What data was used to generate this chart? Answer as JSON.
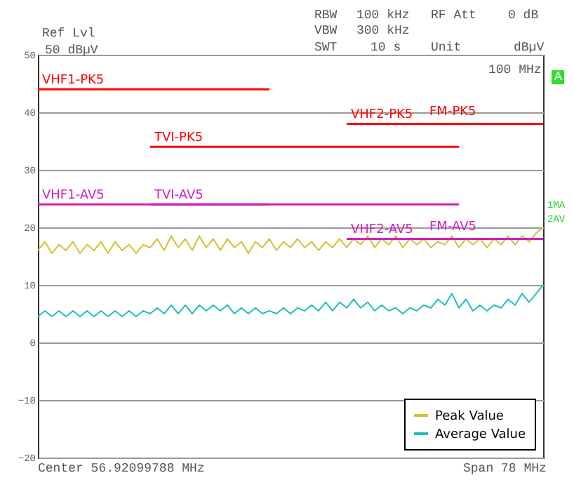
{
  "chart_data": {
    "type": "line",
    "categories": [
      null,
      null,
      null,
      null,
      null,
      null,
      null,
      null,
      null,
      null,
      null,
      null,
      null,
      null,
      null,
      null,
      null,
      null,
      null,
      null,
      null,
      null,
      null,
      null,
      null,
      null,
      null,
      null,
      null,
      null,
      null,
      null,
      null,
      null,
      null,
      null,
      null,
      null,
      null,
      null,
      null,
      null,
      null,
      null,
      null,
      null,
      null,
      null,
      null,
      null,
      null,
      null,
      null,
      null,
      null,
      null,
      null,
      null,
      null,
      null,
      null,
      null,
      null,
      null,
      null,
      null,
      null,
      null,
      null,
      null,
      null,
      null,
      null
    ],
    "series": [
      {
        "name": "Peak Value",
        "color": "#d4c030",
        "values": [
          16,
          17.5,
          15.5,
          17,
          16,
          17.5,
          15.5,
          17,
          16,
          17.5,
          15.5,
          17.5,
          16,
          17,
          15.5,
          17,
          16.5,
          18,
          16,
          18.5,
          16.5,
          18,
          16,
          18.5,
          16.5,
          18,
          16,
          18,
          16.5,
          17.5,
          15.5,
          17.5,
          16.5,
          18,
          16,
          17.5,
          16.5,
          18,
          16.5,
          17.5,
          16,
          17.5,
          16.5,
          18,
          16.5,
          18,
          17,
          18.5,
          16.5,
          18,
          17,
          18.5,
          16.5,
          18,
          17,
          18,
          16.5,
          17.5,
          17,
          18.5,
          16.5,
          18,
          17,
          18,
          16.5,
          18,
          17,
          18.5,
          17,
          18.5,
          17.5,
          19,
          20
        ]
      },
      {
        "name": "Average Value",
        "color": "#20c0c0",
        "values": [
          4.5,
          5.5,
          4.5,
          5.5,
          4.5,
          5.5,
          4.5,
          5.5,
          4.5,
          5.5,
          4.5,
          5.5,
          4.5,
          5.5,
          4.5,
          5.5,
          5,
          6,
          5,
          6.5,
          5,
          6.5,
          5,
          6.5,
          5.5,
          6.5,
          5.5,
          6.5,
          5,
          6,
          5,
          6,
          5,
          5.5,
          5,
          6,
          5,
          6,
          5.5,
          6.5,
          5.5,
          7,
          5.5,
          7,
          6,
          7.5,
          6,
          7,
          5.5,
          6.5,
          5.5,
          6,
          5,
          6,
          5.5,
          6.5,
          6,
          7.5,
          6.5,
          8.5,
          6,
          7.5,
          5.5,
          6.5,
          5.5,
          6.5,
          6,
          7.5,
          6.5,
          8.5,
          7,
          8.5,
          10
        ]
      },
      {
        "name": "VHF1-PK5",
        "type": "step",
        "color": "#ff0000",
        "values": [
          44,
          44,
          44,
          44,
          44,
          44,
          44,
          44,
          44,
          44,
          44,
          44,
          44,
          44,
          44,
          44,
          44,
          44,
          44,
          44,
          44,
          44,
          44,
          44,
          44,
          44,
          44,
          44,
          44,
          44,
          44,
          44,
          44,
          44,
          null,
          null,
          null,
          null,
          null,
          null,
          null,
          null,
          null,
          null,
          null,
          null,
          null,
          null,
          null,
          null,
          null,
          null,
          null,
          null,
          null,
          null,
          null,
          null,
          null,
          null,
          null,
          null,
          null,
          null,
          null,
          null,
          null,
          null,
          null,
          null,
          null,
          null,
          null
        ]
      },
      {
        "name": "TVI-PK5",
        "type": "step",
        "color": "#ff0000",
        "values": [
          null,
          null,
          null,
          null,
          null,
          null,
          null,
          null,
          null,
          null,
          null,
          null,
          null,
          null,
          null,
          null,
          34,
          34,
          34,
          34,
          34,
          34,
          34,
          34,
          34,
          34,
          34,
          34,
          34,
          34,
          34,
          34,
          34,
          34,
          34,
          34,
          34,
          34,
          34,
          34,
          34,
          34,
          34,
          34,
          34,
          34,
          34,
          34,
          34,
          34,
          34,
          34,
          34,
          34,
          34,
          34,
          34,
          34,
          34,
          34,
          34,
          null,
          null,
          null,
          null,
          null,
          null,
          null,
          null,
          null,
          null,
          null,
          null
        ]
      },
      {
        "name": "VHF2-PK5",
        "type": "step",
        "color": "#ff0000",
        "values": [
          null,
          null,
          null,
          null,
          null,
          null,
          null,
          null,
          null,
          null,
          null,
          null,
          null,
          null,
          null,
          null,
          null,
          null,
          null,
          null,
          null,
          null,
          null,
          null,
          null,
          null,
          null,
          null,
          null,
          null,
          null,
          null,
          null,
          null,
          null,
          null,
          null,
          null,
          null,
          null,
          null,
          null,
          null,
          null,
          38,
          38,
          38,
          38,
          38,
          38,
          38,
          38,
          38,
          38,
          38,
          38,
          38,
          38,
          38,
          38,
          38,
          38,
          38,
          38,
          38,
          38,
          38,
          38,
          38,
          38,
          38,
          38,
          38
        ]
      },
      {
        "name": "VHF1-AV5",
        "type": "step",
        "color": "#d020c0",
        "values": [
          24,
          24,
          24,
          24,
          24,
          24,
          24,
          24,
          24,
          24,
          24,
          24,
          24,
          24,
          24,
          24,
          24,
          24,
          24,
          24,
          24,
          24,
          24,
          24,
          24,
          24,
          24,
          24,
          24,
          24,
          24,
          24,
          24,
          24,
          null,
          null,
          null,
          null,
          null,
          null,
          null,
          null,
          null,
          null,
          null,
          null,
          null,
          null,
          null,
          null,
          null,
          null,
          null,
          null,
          null,
          null,
          null,
          null,
          null,
          null,
          null,
          null,
          null,
          null,
          null,
          null,
          null,
          null,
          null,
          null,
          null,
          null,
          null
        ]
      },
      {
        "name": "TVI-AV5",
        "type": "step",
        "color": "#d020c0",
        "values": [
          null,
          null,
          null,
          null,
          null,
          null,
          null,
          null,
          null,
          null,
          null,
          null,
          null,
          null,
          null,
          null,
          24,
          24,
          24,
          24,
          24,
          24,
          24,
          24,
          24,
          24,
          24,
          24,
          24,
          24,
          24,
          24,
          24,
          24,
          24,
          24,
          24,
          24,
          24,
          24,
          24,
          24,
          24,
          24,
          24,
          24,
          24,
          24,
          24,
          24,
          24,
          24,
          24,
          24,
          24,
          24,
          24,
          24,
          24,
          24,
          24,
          null,
          null,
          null,
          null,
          null,
          null,
          null,
          null,
          null,
          null,
          null,
          null
        ]
      },
      {
        "name": "VHF2-AV5",
        "type": "step",
        "color": "#d020c0",
        "values": [
          null,
          null,
          null,
          null,
          null,
          null,
          null,
          null,
          null,
          null,
          null,
          null,
          null,
          null,
          null,
          null,
          null,
          null,
          null,
          null,
          null,
          null,
          null,
          null,
          null,
          null,
          null,
          null,
          null,
          null,
          null,
          null,
          null,
          null,
          null,
          null,
          null,
          null,
          null,
          null,
          null,
          null,
          null,
          null,
          18,
          18,
          18,
          18,
          18,
          18,
          18,
          18,
          18,
          18,
          18,
          18,
          18,
          18,
          18,
          18,
          18,
          18,
          18,
          18,
          18,
          18,
          18,
          18,
          18,
          18,
          18,
          18,
          18
        ]
      }
    ],
    "ylim": [
      -20,
      50
    ],
    "yticks": [
      -20,
      -10,
      0,
      10,
      20,
      30,
      40,
      50
    ],
    "grid": "y",
    "legend": "bottom right",
    "annotations": [
      "Ref Lvl",
      "50 dBµV",
      "RBW",
      "100 kHz",
      "VBW",
      "300 kHz",
      "SWT",
      "10 s",
      "RF Att",
      "0 dB",
      "Unit",
      "dBµV",
      "100 MHz",
      "A",
      "1MA",
      "2AV",
      "Center 56.92099788 MHz",
      "Span 78 MHz",
      {
        "text": "FM-PK5",
        "y": 38
      },
      {
        "text": "FM-AV5",
        "y": 18
      }
    ]
  }
}
